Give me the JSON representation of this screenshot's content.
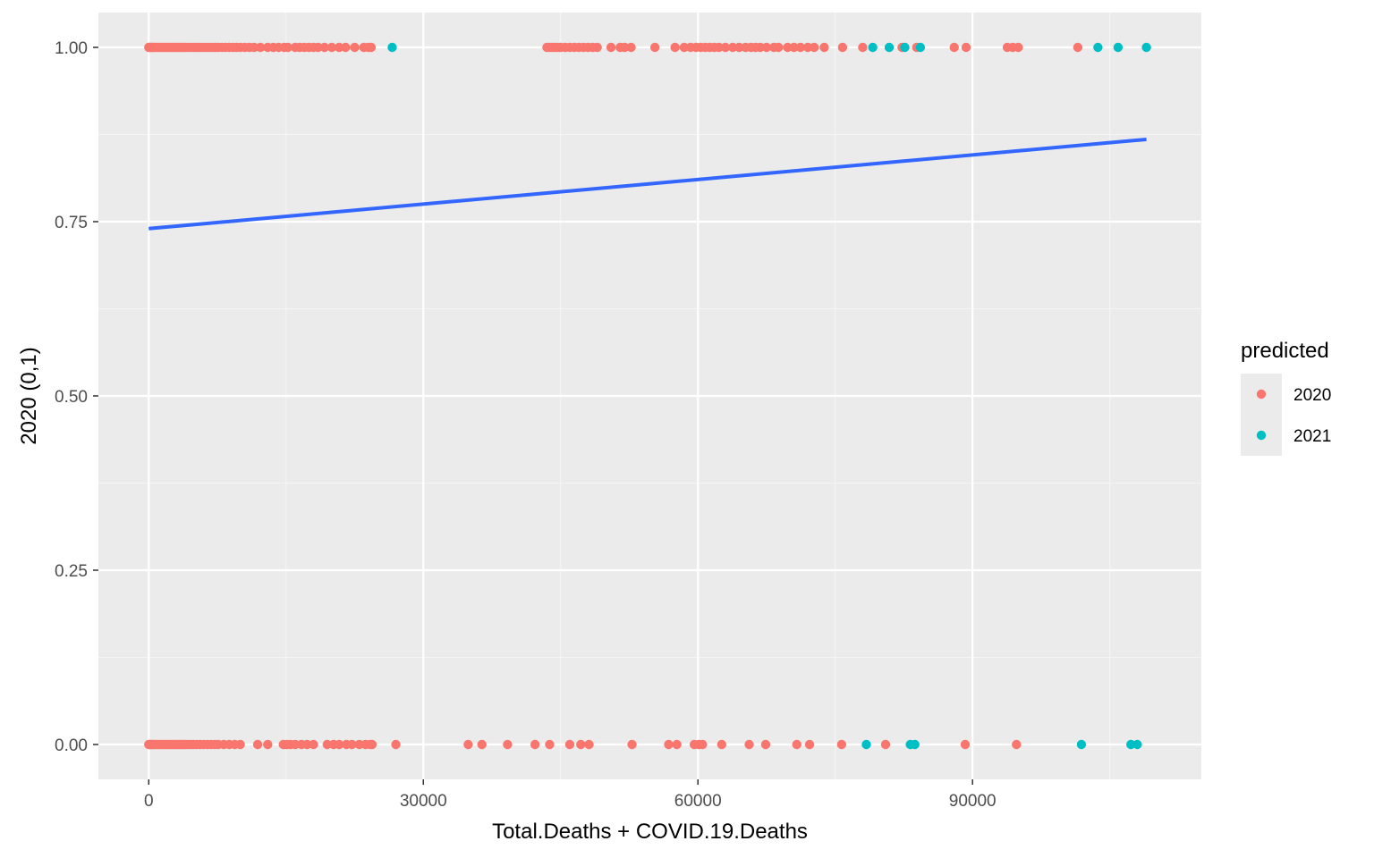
{
  "chart_data": {
    "type": "scatter",
    "title": "",
    "xlabel": "Total.Deaths + COVID.19.Deaths",
    "ylabel": "2020 (0,1)",
    "xlim": [
      -5500,
      115000
    ],
    "ylim": [
      -0.05,
      1.05
    ],
    "x_ticks": [
      0,
      30000,
      60000,
      90000
    ],
    "x_tick_labels": [
      "0",
      "30000",
      "60000",
      "90000"
    ],
    "y_ticks": [
      0,
      0.25,
      0.5,
      0.75,
      1.0
    ],
    "y_tick_labels": [
      "0.00",
      "0.25",
      "0.50",
      "0.75",
      "1.00"
    ],
    "grid": true,
    "legend": {
      "title": "predicted",
      "placement": "right",
      "entries": [
        {
          "label": "2020",
          "color": "#F8766D"
        },
        {
          "label": "2021",
          "color": "#00BFC4"
        }
      ]
    },
    "series": [
      {
        "name": "2020",
        "color": "#F8766D",
        "points": [
          [
            0,
            1
          ],
          [
            100,
            1
          ],
          [
            200,
            1
          ],
          [
            300,
            1
          ],
          [
            450,
            1
          ],
          [
            600,
            1
          ],
          [
            800,
            1
          ],
          [
            1000,
            1
          ],
          [
            1200,
            1
          ],
          [
            1400,
            1
          ],
          [
            1600,
            1
          ],
          [
            1800,
            1
          ],
          [
            2000,
            1
          ],
          [
            2200,
            1
          ],
          [
            2400,
            1
          ],
          [
            2600,
            1
          ],
          [
            2800,
            1
          ],
          [
            3000,
            1
          ],
          [
            3200,
            1
          ],
          [
            3400,
            1
          ],
          [
            3600,
            1
          ],
          [
            3800,
            1
          ],
          [
            4000,
            1
          ],
          [
            4300,
            1
          ],
          [
            4600,
            1
          ],
          [
            4900,
            1
          ],
          [
            5200,
            1
          ],
          [
            5500,
            1
          ],
          [
            5800,
            1
          ],
          [
            6100,
            1
          ],
          [
            6400,
            1
          ],
          [
            6700,
            1
          ],
          [
            7000,
            1
          ],
          [
            7300,
            1
          ],
          [
            7600,
            1
          ],
          [
            8000,
            1
          ],
          [
            8400,
            1
          ],
          [
            8800,
            1
          ],
          [
            9200,
            1
          ],
          [
            9600,
            1
          ],
          [
            10000,
            1
          ],
          [
            10500,
            1
          ],
          [
            11000,
            1
          ],
          [
            11500,
            1
          ],
          [
            12200,
            1
          ],
          [
            13000,
            1
          ],
          [
            13600,
            1
          ],
          [
            14200,
            1
          ],
          [
            14800,
            1
          ],
          [
            15200,
            1
          ],
          [
            16000,
            1
          ],
          [
            16500,
            1
          ],
          [
            17000,
            1
          ],
          [
            17500,
            1
          ],
          [
            18000,
            1
          ],
          [
            18500,
            1
          ],
          [
            19200,
            1
          ],
          [
            20000,
            1
          ],
          [
            20800,
            1
          ],
          [
            21500,
            1
          ],
          [
            22500,
            1
          ],
          [
            23500,
            1
          ],
          [
            24000,
            1
          ],
          [
            24300,
            1
          ],
          [
            43500,
            1
          ],
          [
            43800,
            1
          ],
          [
            44100,
            1
          ],
          [
            44400,
            1
          ],
          [
            44700,
            1
          ],
          [
            45000,
            1
          ],
          [
            45500,
            1
          ],
          [
            46000,
            1
          ],
          [
            46500,
            1
          ],
          [
            47000,
            1
          ],
          [
            47500,
            1
          ],
          [
            48000,
            1
          ],
          [
            48500,
            1
          ],
          [
            49000,
            1
          ],
          [
            50500,
            1
          ],
          [
            51500,
            1
          ],
          [
            52000,
            1
          ],
          [
            52700,
            1
          ],
          [
            55300,
            1
          ],
          [
            57500,
            1
          ],
          [
            58500,
            1
          ],
          [
            59200,
            1
          ],
          [
            59800,
            1
          ],
          [
            60300,
            1
          ],
          [
            60800,
            1
          ],
          [
            61300,
            1
          ],
          [
            61800,
            1
          ],
          [
            62300,
            1
          ],
          [
            63000,
            1
          ],
          [
            63800,
            1
          ],
          [
            64500,
            1
          ],
          [
            65200,
            1
          ],
          [
            65800,
            1
          ],
          [
            66300,
            1
          ],
          [
            66800,
            1
          ],
          [
            67500,
            1
          ],
          [
            68300,
            1
          ],
          [
            68800,
            1
          ],
          [
            69800,
            1
          ],
          [
            70500,
            1
          ],
          [
            71200,
            1
          ],
          [
            72000,
            1
          ],
          [
            72700,
            1
          ],
          [
            73800,
            1
          ],
          [
            75800,
            1
          ],
          [
            78000,
            1
          ],
          [
            82300,
            1
          ],
          [
            83900,
            1
          ],
          [
            88000,
            1
          ],
          [
            89300,
            1
          ],
          [
            93800,
            1
          ],
          [
            94400,
            1
          ],
          [
            95000,
            1
          ],
          [
            101500,
            1
          ],
          [
            0,
            0
          ],
          [
            100,
            0
          ],
          [
            200,
            0
          ],
          [
            300,
            0
          ],
          [
            450,
            0
          ],
          [
            600,
            0
          ],
          [
            800,
            0
          ],
          [
            1000,
            0
          ],
          [
            1200,
            0
          ],
          [
            1400,
            0
          ],
          [
            1600,
            0
          ],
          [
            1800,
            0
          ],
          [
            2000,
            0
          ],
          [
            2200,
            0
          ],
          [
            2400,
            0
          ],
          [
            2600,
            0
          ],
          [
            2800,
            0
          ],
          [
            3000,
            0
          ],
          [
            3200,
            0
          ],
          [
            3400,
            0
          ],
          [
            3600,
            0
          ],
          [
            3800,
            0
          ],
          [
            4000,
            0
          ],
          [
            4300,
            0
          ],
          [
            4600,
            0
          ],
          [
            4900,
            0
          ],
          [
            5200,
            0
          ],
          [
            5600,
            0
          ],
          [
            6000,
            0
          ],
          [
            6400,
            0
          ],
          [
            6800,
            0
          ],
          [
            7200,
            0
          ],
          [
            7600,
            0
          ],
          [
            8200,
            0
          ],
          [
            8800,
            0
          ],
          [
            9400,
            0
          ],
          [
            10000,
            0
          ],
          [
            11900,
            0
          ],
          [
            13000,
            0
          ],
          [
            14700,
            0
          ],
          [
            15100,
            0
          ],
          [
            15500,
            0
          ],
          [
            16000,
            0
          ],
          [
            16700,
            0
          ],
          [
            17300,
            0
          ],
          [
            18000,
            0
          ],
          [
            19500,
            0
          ],
          [
            20200,
            0
          ],
          [
            20800,
            0
          ],
          [
            21600,
            0
          ],
          [
            22200,
            0
          ],
          [
            23000,
            0
          ],
          [
            23700,
            0
          ],
          [
            24200,
            0
          ],
          [
            24400,
            0
          ],
          [
            27000,
            0
          ],
          [
            34900,
            0
          ],
          [
            36400,
            0
          ],
          [
            39200,
            0
          ],
          [
            42200,
            0
          ],
          [
            43800,
            0
          ],
          [
            46000,
            0
          ],
          [
            47200,
            0
          ],
          [
            48100,
            0
          ],
          [
            52800,
            0
          ],
          [
            56800,
            0
          ],
          [
            57700,
            0
          ],
          [
            59600,
            0
          ],
          [
            60100,
            0
          ],
          [
            60500,
            0
          ],
          [
            62600,
            0
          ],
          [
            65600,
            0
          ],
          [
            67400,
            0
          ],
          [
            70800,
            0
          ],
          [
            72200,
            0
          ],
          [
            75700,
            0
          ],
          [
            80500,
            0
          ],
          [
            89200,
            0
          ],
          [
            94800,
            0
          ]
        ]
      },
      {
        "name": "2021",
        "color": "#00BFC4",
        "points": [
          [
            26600,
            1
          ],
          [
            79100,
            1
          ],
          [
            80900,
            1
          ],
          [
            82600,
            1
          ],
          [
            84300,
            1
          ],
          [
            103700,
            1
          ],
          [
            105900,
            1
          ],
          [
            109000,
            1
          ],
          [
            78400,
            0
          ],
          [
            83200,
            0
          ],
          [
            83700,
            0
          ],
          [
            101900,
            0
          ],
          [
            107300,
            0
          ],
          [
            108000,
            0
          ]
        ]
      }
    ],
    "fit_line": {
      "color": "#3366FF",
      "x": [
        0,
        109000
      ],
      "y": [
        0.74,
        0.868
      ]
    }
  }
}
